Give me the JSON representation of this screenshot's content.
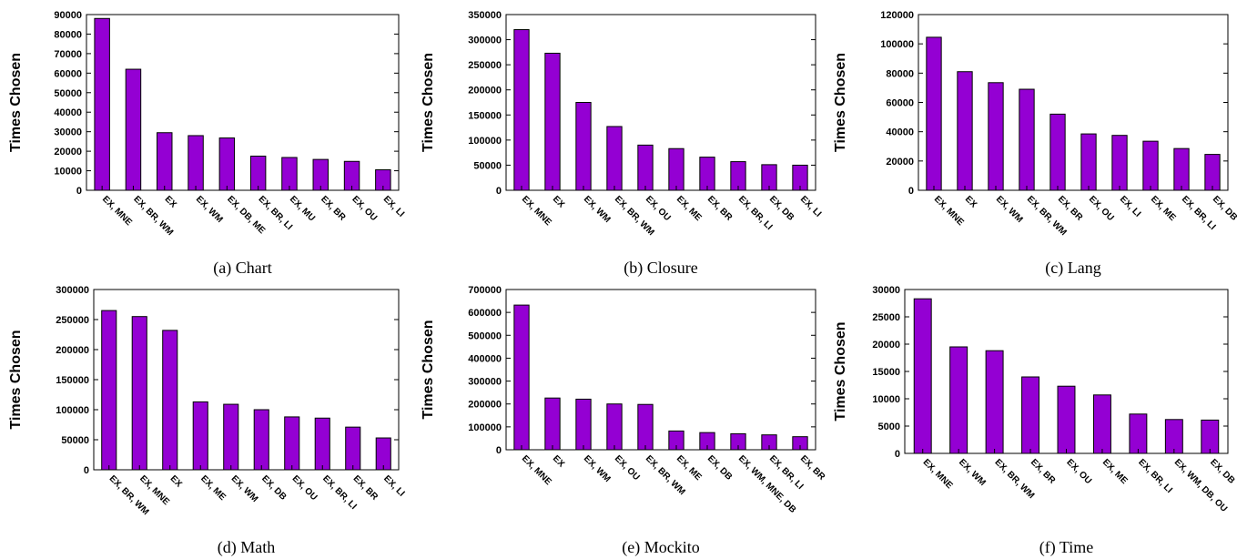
{
  "bar_color": "#9400d3",
  "chart_data": [
    {
      "type": "bar",
      "caption": "(a) Chart",
      "ylabel": "Times Chosen",
      "ylim": [
        0,
        90000
      ],
      "yticks": [
        0,
        10000,
        20000,
        30000,
        40000,
        50000,
        60000,
        70000,
        80000,
        90000
      ],
      "categories": [
        "EX, MNE",
        "EX, BR, WM",
        "EX",
        "EX, WM",
        "EX, DB, ME",
        "EX, BR, LI",
        "EX, MU",
        "EX, BR",
        "EX, OU",
        "EX, LI"
      ],
      "values": [
        88000,
        62000,
        29500,
        28000,
        26800,
        17500,
        16800,
        15800,
        14800,
        10500
      ]
    },
    {
      "type": "bar",
      "caption": "(b) Closure",
      "ylabel": "Times Chosen",
      "ylim": [
        0,
        350000
      ],
      "yticks": [
        0,
        50000,
        100000,
        150000,
        200000,
        250000,
        300000,
        350000
      ],
      "categories": [
        "EX, MNE",
        "EX",
        "EX, WM",
        "EX, BR, WM",
        "EX, OU",
        "EX, ME",
        "EX, BR",
        "EX, BR, LI",
        "EX, DB",
        "EX, LI"
      ],
      "values": [
        320000,
        273000,
        175000,
        127000,
        90000,
        83000,
        66000,
        57000,
        51000,
        50000
      ]
    },
    {
      "type": "bar",
      "caption": "(c) Lang",
      "ylabel": "Times Chosen",
      "ylim": [
        0,
        120000
      ],
      "yticks": [
        0,
        20000,
        40000,
        60000,
        80000,
        100000,
        120000
      ],
      "categories": [
        "EX, MNE",
        "EX",
        "EX, WM",
        "EX, BR, WM",
        "EX, BR",
        "EX, OU",
        "EX, LI",
        "EX, ME",
        "EX, BR, LI",
        "EX, DB"
      ],
      "values": [
        104500,
        81000,
        73500,
        69000,
        52000,
        38500,
        37500,
        33500,
        28500,
        24500
      ]
    },
    {
      "type": "bar",
      "caption": "(d) Math",
      "ylabel": "Times Chosen",
      "ylim": [
        0,
        300000
      ],
      "yticks": [
        0,
        50000,
        100000,
        150000,
        200000,
        250000,
        300000
      ],
      "categories": [
        "EX, BR, WM",
        "EX, MNE",
        "EX",
        "EX, ME",
        "EX, WM",
        "EX, DB",
        "EX, OU",
        "EX, BR, LI",
        "EX, BR",
        "EX, LI"
      ],
      "values": [
        265000,
        255000,
        232000,
        113000,
        109000,
        100000,
        88000,
        86000,
        71000,
        53000
      ]
    },
    {
      "type": "bar",
      "caption": "(e) Mockito",
      "ylabel": "Times Chosen",
      "ylim": [
        0,
        700000
      ],
      "yticks": [
        0,
        100000,
        200000,
        300000,
        400000,
        500000,
        600000,
        700000
      ],
      "categories": [
        "EX, MNE",
        "EX",
        "EX, WM",
        "EX, OU",
        "EX, BR, WM",
        "EX, ME",
        "EX, DB",
        "EX, WM, MNE, DB",
        "EX, BR, LI",
        "EX, BR"
      ],
      "values": [
        632000,
        226000,
        221000,
        200000,
        198000,
        82000,
        75000,
        70000,
        65000,
        57000
      ]
    },
    {
      "type": "bar",
      "caption": "(f) Time",
      "ylabel": "Times Chosen",
      "ylim": [
        0,
        30000
      ],
      "yticks": [
        0,
        5000,
        10000,
        15000,
        20000,
        25000,
        30000
      ],
      "categories": [
        "EX, MNE",
        "EX, WM",
        "EX, BR, WM",
        "EX, BR",
        "EX, OU",
        "EX, ME",
        "EX, BR, LI",
        "EX, WM, DB, OU",
        "EX, DB"
      ],
      "values": [
        28300,
        19500,
        18800,
        14000,
        12300,
        10700,
        7200,
        6200,
        6100
      ]
    }
  ]
}
